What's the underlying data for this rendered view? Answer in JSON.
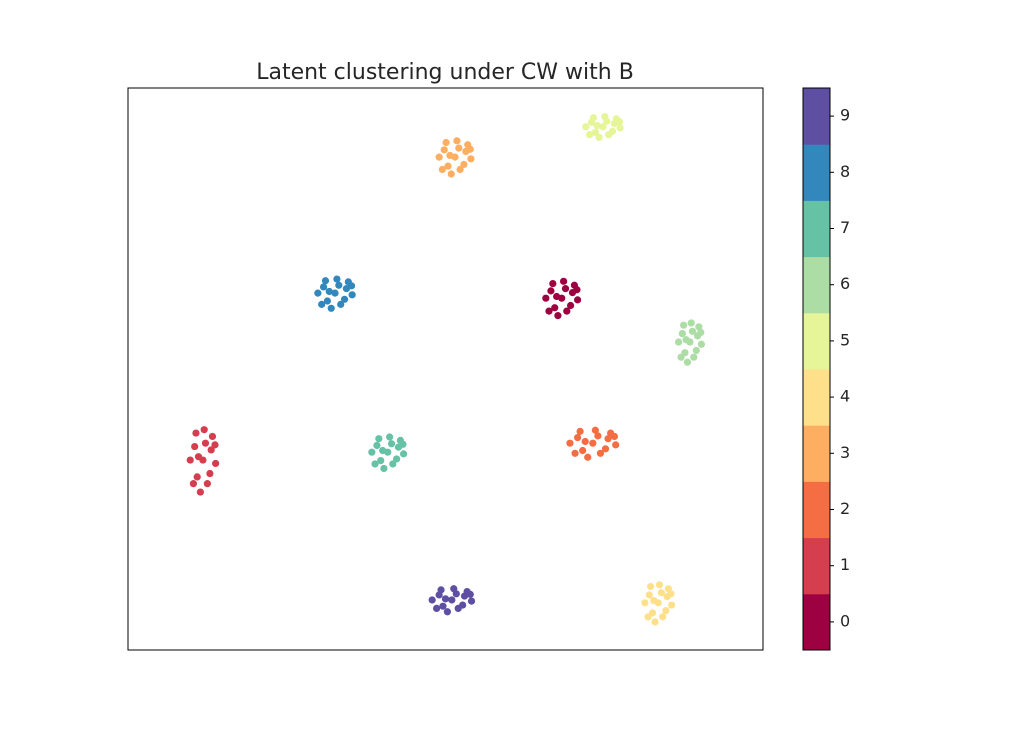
{
  "chart_data": {
    "type": "scatter",
    "title": "Latent clustering under CW with B",
    "xlim": [
      0,
      100
    ],
    "ylim": [
      0,
      100
    ],
    "series": [
      {
        "name": "0",
        "color": "#9e0142",
        "x": [
          68.3,
          70.0,
          66.6,
          69.1,
          67.2,
          70.8,
          65.8,
          68.6,
          67.7,
          70.3,
          66.3,
          69.7,
          66.9,
          68.9,
          67.5,
          70.7
        ],
        "y": [
          62.6,
          63.6,
          63.9,
          60.3,
          60.9,
          62.3,
          62.6,
          65.6,
          59.5,
          64.9,
          60.3,
          61.3,
          65.2,
          64.3,
          62.9,
          64.1
        ]
      },
      {
        "name": "1",
        "color": "#d53e4f",
        "x": [
          11.8,
          13.1,
          10.5,
          12.5,
          10.9,
          13.8,
          9.8,
          12.0,
          11.4,
          13.3,
          10.3,
          12.9,
          10.7,
          12.2,
          11.1,
          13.7
        ],
        "y": [
          33.8,
          35.6,
          36.2,
          29.6,
          30.8,
          33.2,
          33.8,
          39.2,
          28.1,
          38.0,
          29.6,
          31.4,
          38.6,
          36.8,
          34.4,
          36.5
        ]
      },
      {
        "name": "2",
        "color": "#f46d43",
        "x": [
          73.2,
          75.6,
          70.8,
          74.4,
          71.6,
          76.8,
          69.6,
          73.6,
          72.4,
          76.0,
          70.4,
          75.2,
          71.2,
          74.0,
          72.0,
          76.6
        ],
        "y": [
          36.8,
          37.6,
          37.8,
          35.0,
          35.5,
          36.5,
          36.8,
          39.1,
          34.3,
          38.6,
          35.0,
          35.8,
          38.9,
          38.1,
          37.1,
          38.0
        ]
      },
      {
        "name": "3",
        "color": "#fdae61",
        "x": [
          51.5,
          53.2,
          49.8,
          52.3,
          50.4,
          54.0,
          49.0,
          51.8,
          50.9,
          53.5,
          49.5,
          52.9,
          50.1,
          52.1,
          50.7,
          53.9
        ],
        "y": [
          87.7,
          88.7,
          89.0,
          85.5,
          86.1,
          87.4,
          87.7,
          90.6,
          84.7,
          89.9,
          85.5,
          86.4,
          90.3,
          89.3,
          88.0,
          89.1
        ]
      },
      {
        "name": "4",
        "color": "#fee08b",
        "x": [
          83.5,
          84.9,
          82.1,
          84.2,
          82.6,
          85.6,
          81.4,
          83.7,
          83.0,
          85.1,
          81.9,
          84.7,
          82.3,
          84.0,
          82.8,
          85.5
        ],
        "y": [
          8.4,
          9.5,
          9.8,
          5.9,
          6.6,
          8.0,
          8.4,
          11.6,
          5.0,
          10.9,
          5.9,
          7.0,
          11.3,
          10.2,
          8.8,
          10.0
        ]
      },
      {
        "name": "5",
        "color": "#e6f598",
        "x": [
          74.8,
          76.6,
          73.0,
          75.7,
          73.6,
          77.5,
          72.1,
          75.1,
          74.2,
          76.9,
          72.7,
          76.3,
          73.3,
          75.4,
          73.9,
          77.4
        ],
        "y": [
          93.1,
          93.7,
          93.9,
          91.7,
          92.1,
          92.9,
          93.1,
          94.9,
          91.2,
          94.5,
          91.7,
          92.3,
          94.7,
          94.1,
          93.3,
          94.0
        ]
      },
      {
        "name": "6",
        "color": "#abdda4",
        "x": [
          88.5,
          89.7,
          87.3,
          89.1,
          87.7,
          90.3,
          86.7,
          88.7,
          88.1,
          89.9,
          87.1,
          89.5,
          87.5,
          88.9,
          87.9,
          90.2
        ],
        "y": [
          54.8,
          55.9,
          56.3,
          52.1,
          52.9,
          54.4,
          54.8,
          58.2,
          51.2,
          57.5,
          52.1,
          53.3,
          57.8,
          56.7,
          55.2,
          56.5
        ]
      },
      {
        "name": "7",
        "color": "#66c2a5",
        "x": [
          40.9,
          42.6,
          39.2,
          41.7,
          39.8,
          43.4,
          38.4,
          41.2,
          40.3,
          42.9,
          38.9,
          42.3,
          39.5,
          41.5,
          40.1,
          43.3
        ],
        "y": [
          35.2,
          36.1,
          36.4,
          33.1,
          33.7,
          34.9,
          35.2,
          37.9,
          32.3,
          37.3,
          33.1,
          34.0,
          37.6,
          36.7,
          35.5,
          36.6
        ]
      },
      {
        "name": "8",
        "color": "#3288bd",
        "x": [
          32.6,
          34.4,
          30.8,
          33.5,
          31.4,
          35.3,
          29.9,
          32.9,
          32.0,
          34.7,
          30.5,
          34.1,
          31.1,
          33.2,
          31.7,
          35.2
        ],
        "y": [
          63.5,
          64.3,
          64.6,
          61.5,
          62.1,
          63.2,
          63.5,
          66.0,
          60.8,
          65.5,
          61.5,
          62.4,
          65.7,
          64.9,
          63.8,
          64.8
        ]
      },
      {
        "name": "9",
        "color": "#5e4fa2",
        "x": [
          51.0,
          53.0,
          49.0,
          52.0,
          49.6,
          54.1,
          47.9,
          51.3,
          50.3,
          53.4,
          48.6,
          52.7,
          49.3,
          51.7,
          50.0,
          53.9
        ],
        "y": [
          8.9,
          9.6,
          9.8,
          7.4,
          7.8,
          8.7,
          8.9,
          10.9,
          6.8,
          10.4,
          7.4,
          8.0,
          10.7,
          10.0,
          9.1,
          9.9
        ]
      }
    ]
  }
}
